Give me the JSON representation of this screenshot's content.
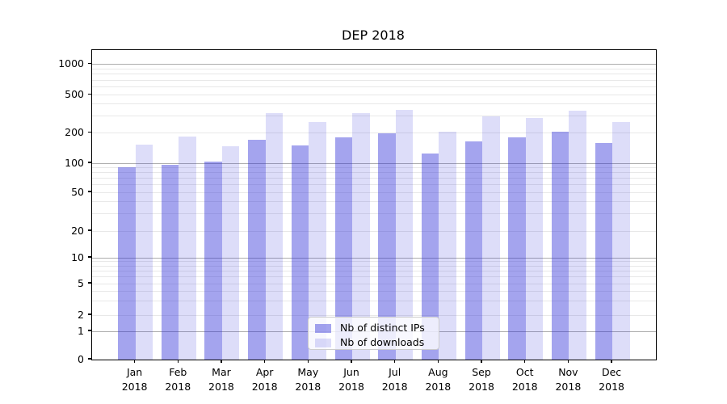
{
  "figure": {
    "title": "DEP 2018"
  },
  "legend": {
    "items": [
      {
        "label": "Nb of distinct IPs",
        "series": "ips"
      },
      {
        "label": "Nb of downloads",
        "series": "downloads"
      }
    ]
  },
  "colors": {
    "ips_bar": "rgba(45,45,215,0.43)",
    "downloads_bar": "rgba(45,45,215,0.16)",
    "major_gridline": "#adadad",
    "minor_gridline": "#e8e8e8",
    "axis_frame": "#000000",
    "text": "#000000",
    "legend_border": "#cccccc"
  },
  "axes": {
    "y_tick_labels": [
      "0",
      "1",
      "2",
      "5",
      "10",
      "20",
      "50",
      "100",
      "200",
      "500",
      "1000"
    ],
    "x_tick_year": "2018"
  },
  "chart_data": {
    "type": "bar",
    "title": "DEP 2018",
    "categories": [
      "Jan 2018",
      "Feb 2018",
      "Mar 2018",
      "Apr 2018",
      "May 2018",
      "Jun 2018",
      "Jul 2018",
      "Aug 2018",
      "Sep 2018",
      "Oct 2018",
      "Nov 2018",
      "Dec 2018"
    ],
    "months": [
      "Jan",
      "Feb",
      "Mar",
      "Apr",
      "May",
      "Jun",
      "Jul",
      "Aug",
      "Sep",
      "Oct",
      "Nov",
      "Dec"
    ],
    "year": "2018",
    "series": [
      {
        "name": "Nb of distinct IPs",
        "key": "ips",
        "values": [
          90,
          97,
          103,
          170,
          150,
          180,
          200,
          125,
          165,
          182,
          205,
          160
        ]
      },
      {
        "name": "Nb of downloads",
        "key": "downloads",
        "values": [
          152,
          185,
          148,
          325,
          260,
          320,
          350,
          205,
          300,
          285,
          340,
          260
        ]
      }
    ],
    "yscale": "symlog",
    "yticks": [
      0,
      1,
      2,
      5,
      10,
      20,
      50,
      100,
      200,
      500,
      1000
    ],
    "ylim": [
      0,
      1400
    ],
    "xlabel": "",
    "ylabel": "",
    "grid": "both",
    "legend_position": "lower-center"
  }
}
